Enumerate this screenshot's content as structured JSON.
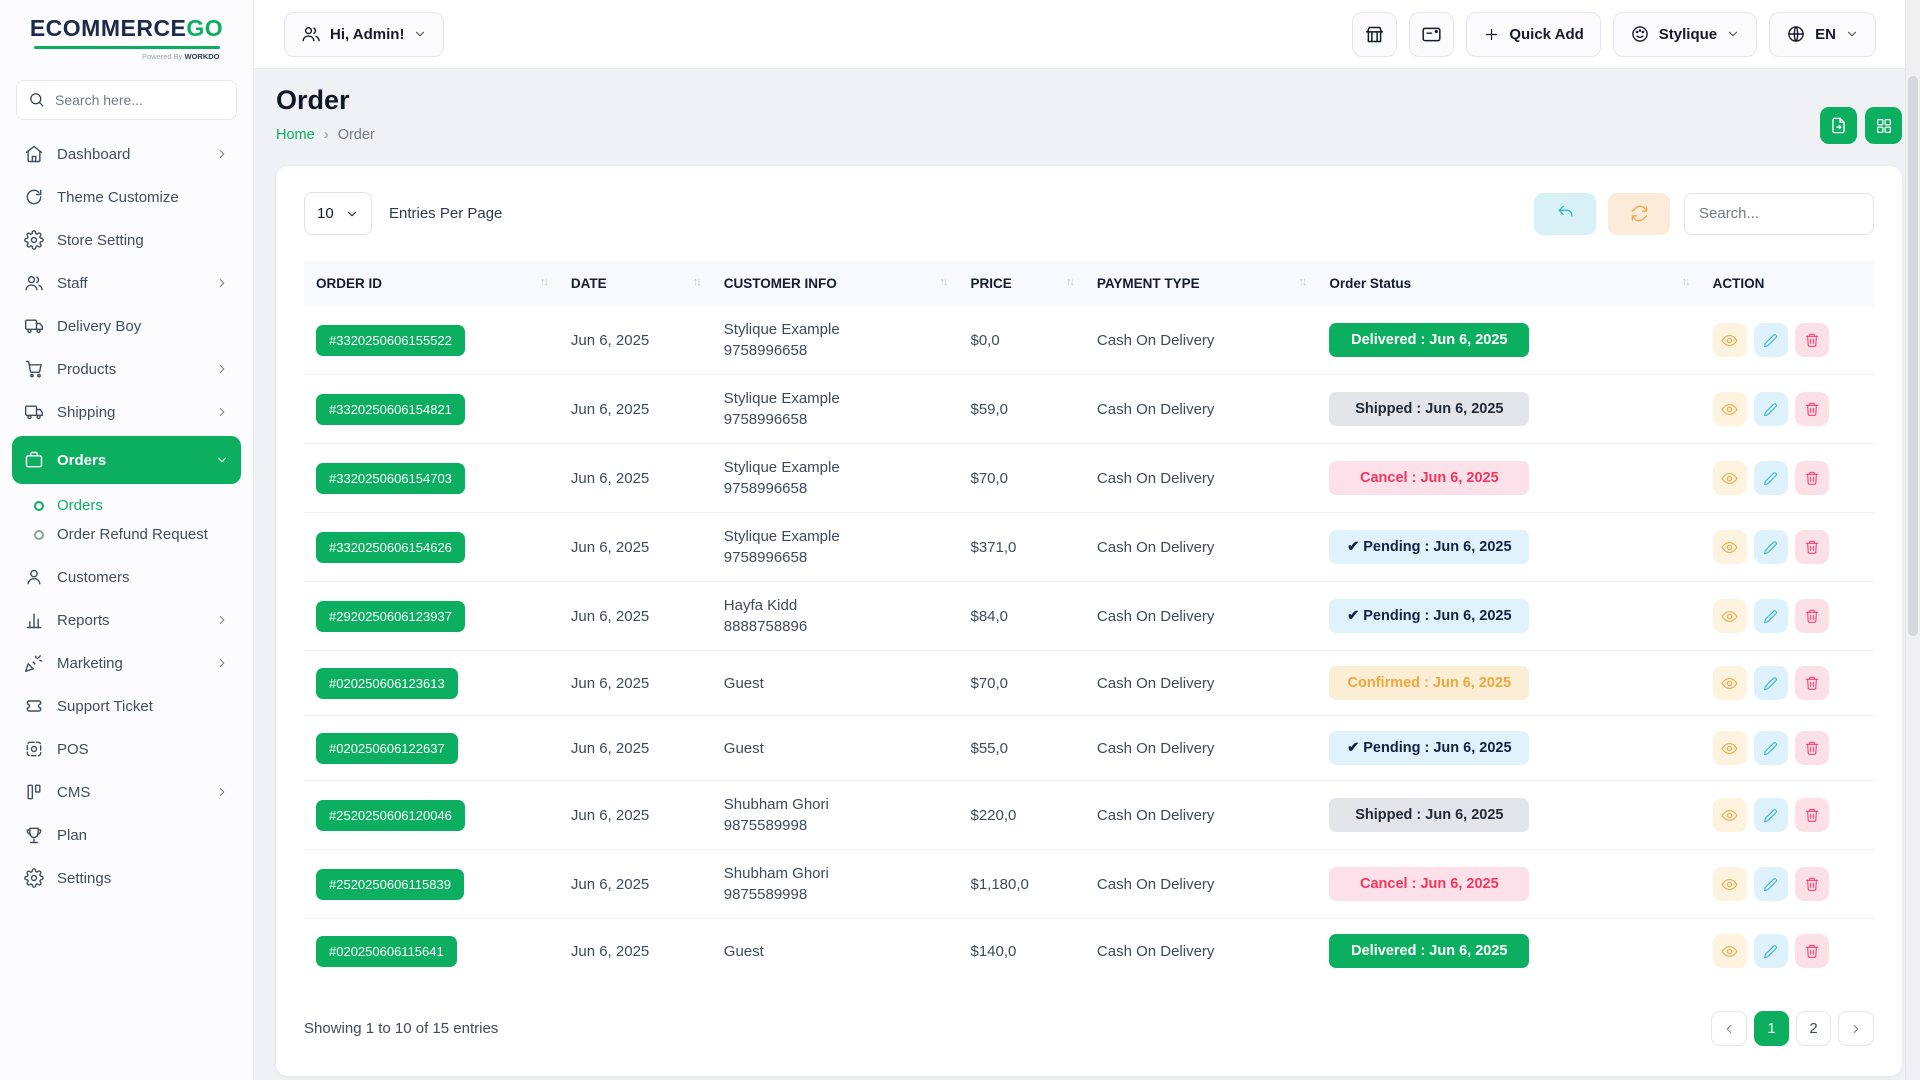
{
  "colors": {
    "accent_green": "#0CAF60",
    "cancel_red": "#F5365C",
    "confirmed_orange": "#EFA73E"
  },
  "brand": {
    "logo_part1": "ECOMMERCE",
    "logo_part2": "GO",
    "powered_by": "Powered By",
    "powered_brand": "WORKDO"
  },
  "sidebar": {
    "search_placeholder": "Search here...",
    "items": [
      {
        "label": "Dashboard",
        "icon": "home-icon",
        "chevron": "right"
      },
      {
        "label": "Theme Customize",
        "icon": "rotate-icon"
      },
      {
        "label": "Store Setting",
        "icon": "store-gear-icon"
      },
      {
        "label": "Staff",
        "icon": "users-icon",
        "chevron": "right"
      },
      {
        "label": "Delivery Boy",
        "icon": "truck-icon"
      },
      {
        "label": "Products",
        "icon": "cart-icon",
        "chevron": "right"
      },
      {
        "label": "Shipping",
        "icon": "truck-icon",
        "chevron": "right"
      },
      {
        "label": "Orders",
        "icon": "briefcase-icon",
        "chevron": "down",
        "active": true,
        "children": [
          {
            "label": "Orders",
            "active": true
          },
          {
            "label": "Order Refund Request",
            "active": false
          }
        ]
      },
      {
        "label": "Customers",
        "icon": "user-icon"
      },
      {
        "label": "Reports",
        "icon": "bar-chart-icon",
        "chevron": "right"
      },
      {
        "label": "Marketing",
        "icon": "party-icon",
        "chevron": "right"
      },
      {
        "label": "Support Ticket",
        "icon": "ticket-icon"
      },
      {
        "label": "POS",
        "icon": "pos-icon"
      },
      {
        "label": "CMS",
        "icon": "cms-icon",
        "chevron": "right"
      },
      {
        "label": "Plan",
        "icon": "trophy-icon"
      },
      {
        "label": "Settings",
        "icon": "gear-icon"
      }
    ]
  },
  "topbar": {
    "greeting": "Hi, Admin!",
    "quick_add": "Quick Add",
    "theme_button": "Stylique",
    "language": "EN"
  },
  "page": {
    "title": "Order",
    "breadcrumb_home": "Home",
    "breadcrumb_current": "Order"
  },
  "controls": {
    "entries_value": "10",
    "entries_label": "Entries Per Page",
    "search_placeholder": "Search..."
  },
  "table": {
    "columns": [
      {
        "label": "ORDER ID",
        "sortable": true
      },
      {
        "label": "DATE",
        "sortable": true
      },
      {
        "label": "CUSTOMER INFO",
        "sortable": true
      },
      {
        "label": "PRICE",
        "sortable": true
      },
      {
        "label": "PAYMENT TYPE",
        "sortable": true
      },
      {
        "label": "Order Status",
        "sortable": true
      },
      {
        "label": "ACTION",
        "sortable": false
      }
    ],
    "rows": [
      {
        "order_id": "#3320250606155522",
        "date": "Jun 6, 2025",
        "customer_name": "Stylique Example",
        "customer_phone": "9758996658",
        "price": "$0,0",
        "payment": "Cash On Delivery",
        "status": "Delivered : Jun 6, 2025",
        "status_type": "delivered"
      },
      {
        "order_id": "#3320250606154821",
        "date": "Jun 6, 2025",
        "customer_name": "Stylique Example",
        "customer_phone": "9758996658",
        "price": "$59,0",
        "payment": "Cash On Delivery",
        "status": "Shipped : Jun 6, 2025",
        "status_type": "shipped"
      },
      {
        "order_id": "#3320250606154703",
        "date": "Jun 6, 2025",
        "customer_name": "Stylique Example",
        "customer_phone": "9758996658",
        "price": "$70,0",
        "payment": "Cash On Delivery",
        "status": "Cancel : Jun 6, 2025",
        "status_type": "cancel"
      },
      {
        "order_id": "#3320250606154626",
        "date": "Jun 6, 2025",
        "customer_name": "Stylique Example",
        "customer_phone": "9758996658",
        "price": "$371,0",
        "payment": "Cash On Delivery",
        "status": "Pending : Jun 6, 2025",
        "status_type": "pending",
        "status_icon": "check-icon"
      },
      {
        "order_id": "#2920250606123937",
        "date": "Jun 6, 2025",
        "customer_name": "Hayfa Kidd",
        "customer_phone": "8888758896",
        "price": "$84,0",
        "payment": "Cash On Delivery",
        "status": "Pending : Jun 6, 2025",
        "status_type": "pending",
        "status_icon": "check-icon"
      },
      {
        "order_id": "#020250606123613",
        "date": "Jun 6, 2025",
        "customer_name": "Guest",
        "customer_phone": "",
        "price": "$70,0",
        "payment": "Cash On Delivery",
        "status": "Confirmed : Jun 6, 2025",
        "status_type": "confirmed"
      },
      {
        "order_id": "#020250606122637",
        "date": "Jun 6, 2025",
        "customer_name": "Guest",
        "customer_phone": "",
        "price": "$55,0",
        "payment": "Cash On Delivery",
        "status": "Pending : Jun 6, 2025",
        "status_type": "pending",
        "status_icon": "check-icon"
      },
      {
        "order_id": "#2520250606120046",
        "date": "Jun 6, 2025",
        "customer_name": "Shubham Ghori",
        "customer_phone": "9875589998",
        "price": "$220,0",
        "payment": "Cash On Delivery",
        "status": "Shipped : Jun 6, 2025",
        "status_type": "shipped"
      },
      {
        "order_id": "#2520250606115839",
        "date": "Jun 6, 2025",
        "customer_name": "Shubham Ghori",
        "customer_phone": "9875589998",
        "price": "$1,180,0",
        "payment": "Cash On Delivery",
        "status": "Cancel : Jun 6, 2025",
        "status_type": "cancel"
      },
      {
        "order_id": "#020250606115641",
        "date": "Jun 6, 2025",
        "customer_name": "Guest",
        "customer_phone": "",
        "price": "$140,0",
        "payment": "Cash On Delivery",
        "status": "Delivered : Jun 6, 2025",
        "status_type": "delivered"
      }
    ]
  },
  "footer": {
    "showing_text": "Showing 1 to 10 of 15 entries",
    "pages": [
      {
        "label": "1",
        "active": true
      },
      {
        "label": "2",
        "active": false
      }
    ]
  }
}
